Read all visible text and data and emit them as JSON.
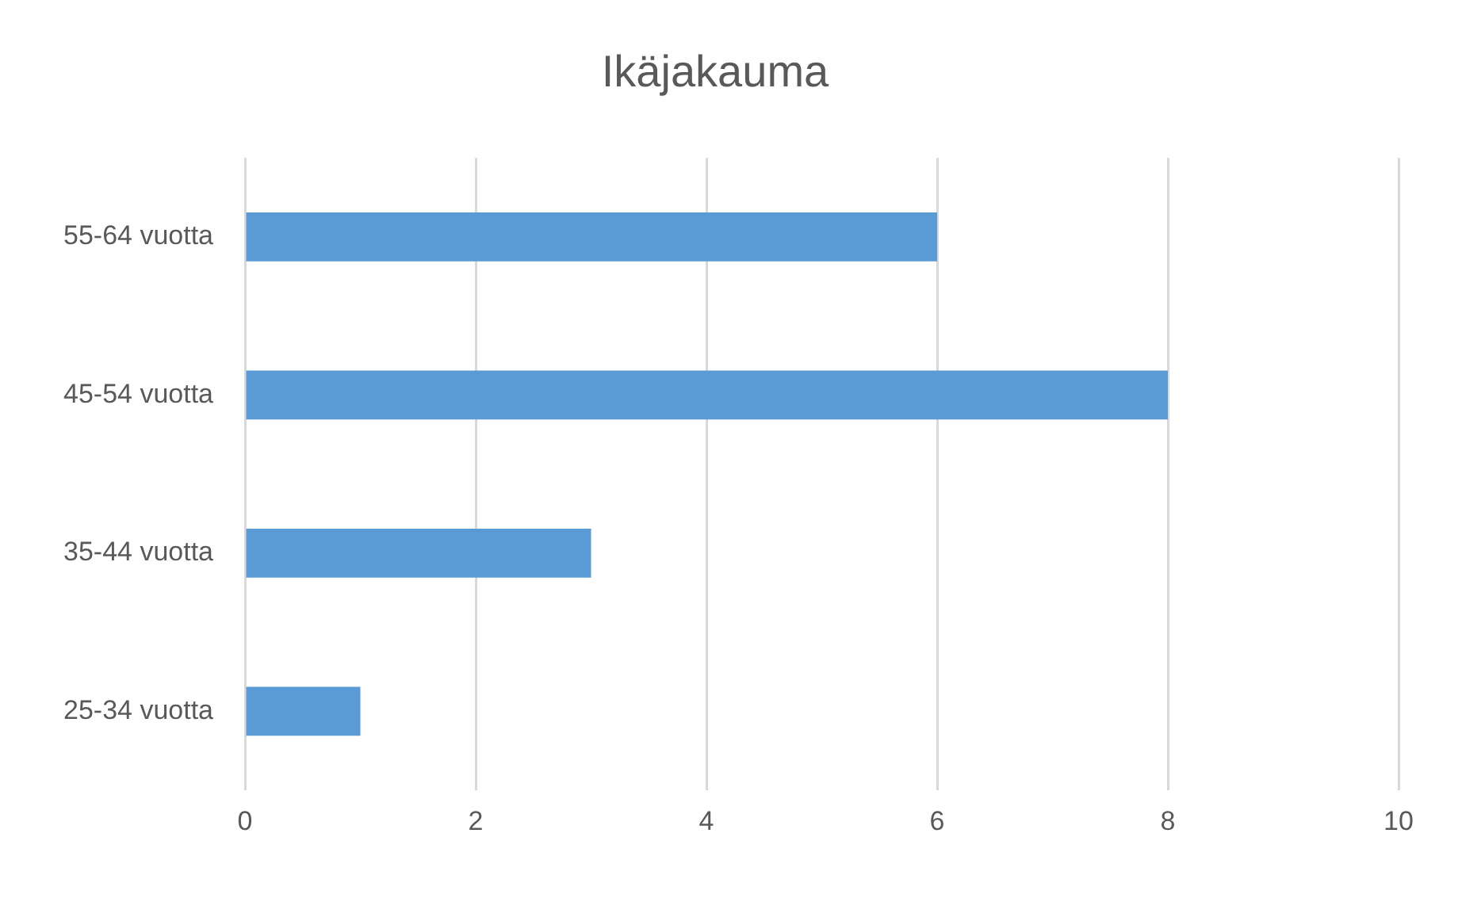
{
  "chart_data": {
    "type": "bar",
    "orientation": "horizontal",
    "title": "Ikäjakauma",
    "categories": [
      "55-64 vuotta",
      "45-54 vuotta",
      "35-44 vuotta",
      "25-34 vuotta"
    ],
    "values": [
      6,
      8,
      3,
      1
    ],
    "color": "#5b9bd5",
    "xlim": [
      0,
      10
    ],
    "xticks": [
      0,
      2,
      4,
      6,
      8,
      10
    ],
    "grid": "x",
    "legend": false
  }
}
